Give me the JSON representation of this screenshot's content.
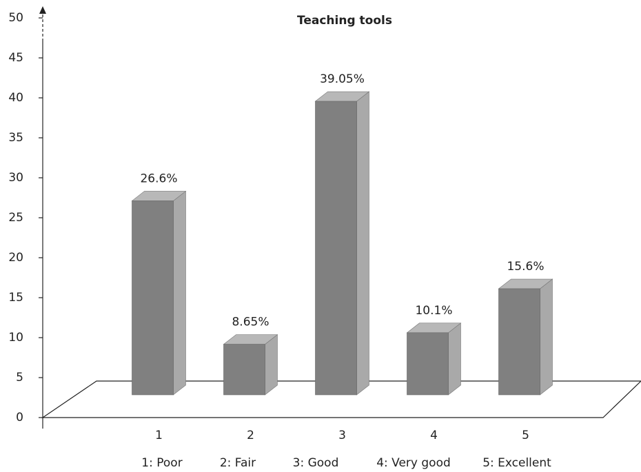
{
  "chart_data": {
    "type": "bar3d",
    "title": "Teaching tools",
    "categories": [
      "1",
      "2",
      "3",
      "4",
      "5"
    ],
    "values": [
      26.6,
      8.65,
      39.05,
      10.1,
      15.6
    ],
    "value_labels": [
      "26.6%",
      "8.65%",
      "39.05%",
      "10.1%",
      "15.6%"
    ],
    "legend_labels": [
      "1: Poor",
      "2: Fair",
      "3: Good",
      "4: Very good",
      "5: Excellent"
    ],
    "color": "#808080",
    "ylim": [
      0,
      50
    ],
    "yticks": [
      0,
      5,
      10,
      15,
      20,
      25,
      30,
      35,
      40,
      45,
      50
    ]
  }
}
